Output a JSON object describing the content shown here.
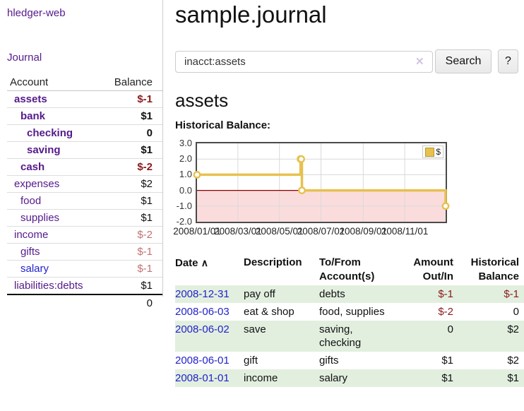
{
  "palette": {
    "purple": "#551a8b",
    "blue": "#2222cc",
    "dark_red": "#8b1a1a",
    "light_red": "#c47272",
    "row_green": "#e2efdf"
  },
  "sidebar": {
    "app_title": "hledger-web",
    "nav": {
      "journal": "Journal"
    },
    "accounts_table": {
      "headers": {
        "account": "Account",
        "balance": "Balance"
      },
      "rows": [
        {
          "name": "assets",
          "depth": 1,
          "bold": true,
          "link": "visited",
          "balance": "$-1",
          "balance_style": "neg-strong"
        },
        {
          "name": "bank",
          "depth": 2,
          "bold": true,
          "link": "visited",
          "balance": "$1",
          "balance_style": "plain"
        },
        {
          "name": "checking",
          "depth": 3,
          "bold": true,
          "link": "visited",
          "balance": "0",
          "balance_style": "plain"
        },
        {
          "name": "saving",
          "depth": 3,
          "bold": true,
          "link": "visited",
          "balance": "$1",
          "balance_style": "plain"
        },
        {
          "name": "cash",
          "depth": 2,
          "bold": true,
          "link": "visited",
          "balance": "$-2",
          "balance_style": "neg-strong"
        },
        {
          "name": "expenses",
          "depth": 1,
          "bold": false,
          "link": "visited",
          "balance": "$2",
          "balance_style": "plain"
        },
        {
          "name": "food",
          "depth": 2,
          "bold": false,
          "link": "visited",
          "balance": "$1",
          "balance_style": "plain"
        },
        {
          "name": "supplies",
          "depth": 2,
          "bold": false,
          "link": "visited",
          "balance": "$1",
          "balance_style": "plain"
        },
        {
          "name": "income",
          "depth": 1,
          "bold": false,
          "link": "visited",
          "balance": "$-2",
          "balance_style": "neg-soft"
        },
        {
          "name": "gifts",
          "depth": 2,
          "bold": false,
          "link": "visited",
          "balance": "$-1",
          "balance_style": "neg-soft"
        },
        {
          "name": "salary",
          "depth": 2,
          "bold": false,
          "link": "unvisited",
          "balance": "$-1",
          "balance_style": "neg-soft"
        },
        {
          "name": "liabilities:debts",
          "depth": 1,
          "bold": false,
          "link": "visited",
          "balance": "$1",
          "balance_style": "plain"
        }
      ],
      "total": "0"
    }
  },
  "main": {
    "title": "sample.journal",
    "search": {
      "value": "inacct:assets",
      "clear_icon": "✕",
      "search_button": "Search",
      "help_button": "?"
    },
    "account_heading": "assets",
    "chart_label": "Historical Balance:",
    "register_table": {
      "sort_indicator": "∧",
      "headers": [
        {
          "label": "Date",
          "sorted": "asc"
        },
        {
          "label": "Description"
        },
        {
          "label": "To/From Account(s)"
        },
        {
          "label": "Amount Out/In",
          "align": "right"
        },
        {
          "label": "Historical Balance",
          "align": "right"
        }
      ],
      "rows": [
        {
          "date": "2008-12-31",
          "description": "pay off",
          "accounts": "debts",
          "amount": "$-1",
          "amount_style": "neg-strong",
          "balance": "$-1",
          "balance_style": "neg-strong"
        },
        {
          "date": "2008-06-03",
          "description": "eat & shop",
          "accounts": "food, supplies",
          "amount": "$-2",
          "amount_style": "neg-strong",
          "balance": "0",
          "balance_style": "plain"
        },
        {
          "date": "2008-06-02",
          "description": "save",
          "accounts": "saving,\nchecking",
          "amount": "0",
          "amount_style": "plain",
          "balance": "$2",
          "balance_style": "plain"
        },
        {
          "date": "2008-06-01",
          "description": "gift",
          "accounts": "gifts",
          "amount": "$1",
          "amount_style": "plain",
          "balance": "$2",
          "balance_style": "plain"
        },
        {
          "date": "2008-01-01",
          "description": "income",
          "accounts": "salary",
          "amount": "$1",
          "amount_style": "plain",
          "balance": "$1",
          "balance_style": "plain"
        }
      ]
    }
  },
  "chart_data": {
    "type": "line",
    "step": "after",
    "title": "Historical Balance:",
    "series": [
      {
        "name": "$",
        "color": "#e7c14f",
        "points": [
          [
            "2008-01-01",
            1
          ],
          [
            "2008-06-01",
            2
          ],
          [
            "2008-06-02",
            2
          ],
          [
            "2008-06-03",
            0
          ],
          [
            "2008-12-31",
            -1
          ]
        ]
      }
    ],
    "x_domain": [
      "2008-01-01",
      "2008-12-31"
    ],
    "x_ticks": [
      "2008/01/01",
      "2008/03/01",
      "2008/05/01",
      "2008/07/01",
      "2008/09/01",
      "2008/11/01"
    ],
    "y_ticks": [
      3.0,
      2.0,
      1.0,
      0.0,
      -1.0,
      -2.0
    ],
    "ylim": [
      -2,
      3
    ],
    "grid": true,
    "grid_color": "#d9d9d9",
    "negative_region_color": "#fbdcdc",
    "zero_line_color": "#8b0000",
    "legend": {
      "label": "$",
      "position": "top-right"
    }
  }
}
